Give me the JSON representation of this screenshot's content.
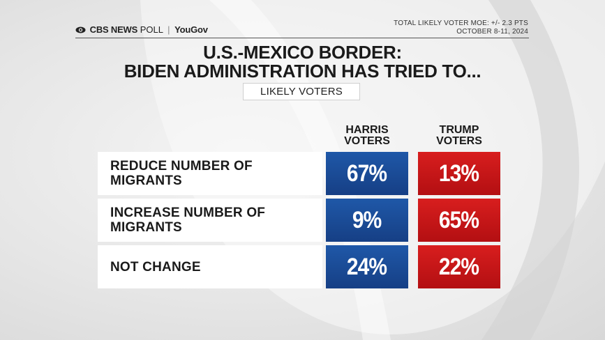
{
  "brand": {
    "network": "CBS NEWS",
    "poll": "POLL",
    "partner": "YouGov"
  },
  "moe_note": [
    "TOTAL LIKELY VOTER MOE: +/- 2.3 PTS",
    "OCTOBER 8-11, 2024"
  ],
  "colors": {
    "harris": "#1f58a8",
    "trump": "#d81e1e"
  },
  "chart_data": {
    "type": "table",
    "title": [
      "U.S.-MEXICO BORDER:",
      "BIDEN ADMINISTRATION HAS TRIED TO..."
    ],
    "subtitle": "LIKELY VOTERS",
    "columns": [
      "HARRIS VOTERS",
      "TRUMP VOTERS"
    ],
    "categories": [
      "REDUCE NUMBER OF MIGRANTS",
      "INCREASE NUMBER OF MIGRANTS",
      "NOT CHANGE"
    ],
    "series": [
      {
        "name": "HARRIS VOTERS",
        "values": [
          67,
          9,
          24
        ]
      },
      {
        "name": "TRUMP VOTERS",
        "values": [
          13,
          65,
          22
        ]
      }
    ],
    "display": {
      "harris": [
        "67%",
        "9%",
        "24%"
      ],
      "trump": [
        "13%",
        "65%",
        "22%"
      ]
    }
  }
}
